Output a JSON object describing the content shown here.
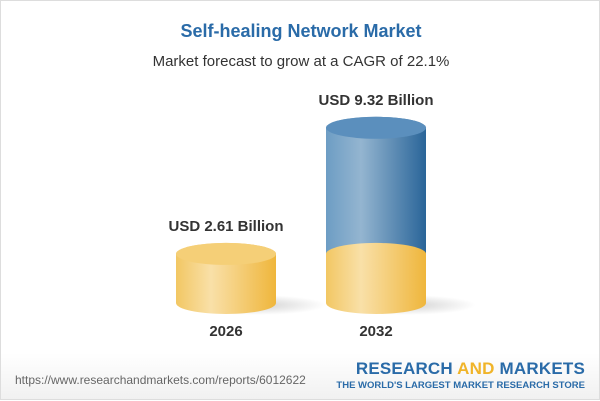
{
  "title": "Self-healing Network Market",
  "subtitle": "Market forecast to grow at a CAGR of 22.1%",
  "chart_data": {
    "type": "bar",
    "title": "Self-healing Network Market",
    "subtitle": "Market forecast to grow at a CAGR of 22.1%",
    "categories": [
      "2026",
      "2032"
    ],
    "values": [
      2.61,
      9.32
    ],
    "data_labels": [
      "USD 2.61 Billion",
      "USD 9.32 Billion"
    ],
    "unit": "USD Billion",
    "style": "3d-cylinder",
    "colors": {
      "base": "#f3c35a",
      "growth": "#4a82b4"
    }
  },
  "footer": {
    "url": "https://www.researchandmarkets.com/reports/6012622",
    "logo_part1": "RESEARCH ",
    "logo_part2": "AND",
    "logo_part3": " MARKETS",
    "tagline": "THE WORLD'S LARGEST MARKET RESEARCH STORE"
  }
}
